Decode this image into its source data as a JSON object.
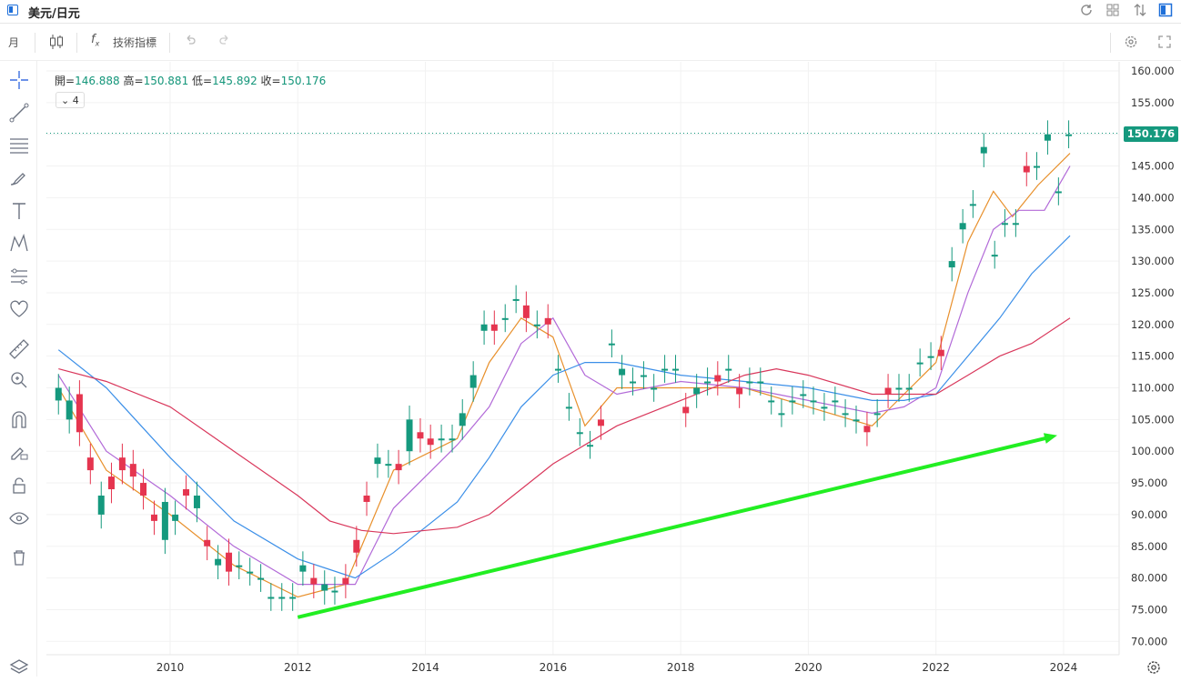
{
  "window": {
    "title": "美元/日元"
  },
  "toolbar": {
    "timeframe": "月",
    "indicators_label": "技術指標"
  },
  "ohlc": {
    "open_label": "開=",
    "open": "146.888",
    "high_label": "高=",
    "high": "150.881",
    "low_label": "低=",
    "low": "145.892",
    "close_label": "收=",
    "close": "150.176"
  },
  "ma_toggle": {
    "count": "4"
  },
  "price_tag": "150.176",
  "icons": [
    "layout-icon",
    "swap-icon",
    "grid-icon",
    "refresh-icon",
    "candle-icon",
    "fx-icon",
    "undo-icon",
    "redo-icon",
    "settings-icon",
    "fullscreen-icon",
    "crosshair-icon",
    "line-icon",
    "hlines-icon",
    "brush-icon",
    "text-icon",
    "pattern-icon",
    "measure-icon",
    "heart-icon",
    "ruler-icon",
    "zoom-icon",
    "magnet-icon",
    "lock-edit-icon",
    "lock-icon",
    "eye-icon",
    "trash-icon",
    "layers-icon",
    "gear-icon"
  ],
  "colors": {
    "up": "#15997e",
    "down": "#e5354f",
    "ma_short": "#e8902c",
    "ma_mid": "#b26ad8",
    "ma_long": "#3b8fe8",
    "ma_xlong": "#d9385c",
    "trend_arrow": "#22ee22"
  },
  "chart_data": {
    "type": "candlestick",
    "x_axis": {
      "ticks": [
        "2010",
        "2012",
        "2014",
        "2016",
        "2018",
        "2020",
        "2022",
        "2024"
      ]
    },
    "y_axis": {
      "ticks": [
        "160.000",
        "155.000",
        "150.000",
        "145.000",
        "140.000",
        "135.000",
        "130.000",
        "125.000",
        "120.000",
        "115.000",
        "110.000",
        "105.000",
        "100.000",
        "95.000",
        "90.000",
        "85.000",
        "80.000",
        "75.000",
        "70.000"
      ],
      "ylim": [
        70,
        160
      ]
    },
    "last_close": 150.176,
    "series": [
      {
        "type": "candles",
        "points": [
          [
            2008.25,
            108,
            110
          ],
          [
            2008.42,
            105,
            108
          ],
          [
            2008.58,
            109,
            103
          ],
          [
            2008.75,
            99,
            97
          ],
          [
            2008.92,
            90,
            93
          ],
          [
            2009.08,
            96,
            94
          ],
          [
            2009.25,
            99,
            97
          ],
          [
            2009.42,
            98,
            96
          ],
          [
            2009.58,
            95,
            93
          ],
          [
            2009.75,
            90,
            89
          ],
          [
            2009.92,
            86,
            92
          ],
          [
            2010.08,
            89,
            90
          ],
          [
            2010.25,
            94,
            93
          ],
          [
            2010.42,
            91,
            93
          ],
          [
            2010.58,
            86,
            85
          ],
          [
            2010.75,
            82,
            83
          ],
          [
            2010.92,
            84,
            81
          ],
          [
            2011.08,
            82,
            82
          ],
          [
            2011.25,
            81,
            81
          ],
          [
            2011.42,
            80,
            80
          ],
          [
            2011.58,
            77,
            77
          ],
          [
            2011.75,
            77,
            77
          ],
          [
            2011.92,
            77,
            77
          ],
          [
            2012.08,
            81,
            82
          ],
          [
            2012.25,
            80,
            79
          ],
          [
            2012.42,
            78,
            79
          ],
          [
            2012.58,
            78,
            78
          ],
          [
            2012.75,
            80,
            79
          ],
          [
            2012.92,
            86,
            84
          ],
          [
            2013.08,
            93,
            92
          ],
          [
            2013.25,
            98,
            99
          ],
          [
            2013.42,
            98,
            98
          ],
          [
            2013.58,
            98,
            97
          ],
          [
            2013.75,
            100,
            105
          ],
          [
            2013.92,
            103,
            102
          ],
          [
            2014.08,
            102,
            101
          ],
          [
            2014.25,
            102,
            102
          ],
          [
            2014.42,
            102,
            102
          ],
          [
            2014.58,
            104,
            106
          ],
          [
            2014.75,
            110,
            112
          ],
          [
            2014.92,
            119,
            120
          ],
          [
            2015.08,
            120,
            119
          ],
          [
            2015.25,
            121,
            121
          ],
          [
            2015.42,
            124,
            124
          ],
          [
            2015.58,
            123,
            121
          ],
          [
            2015.75,
            120,
            120
          ],
          [
            2015.92,
            121,
            120
          ],
          [
            2016.08,
            113,
            113
          ],
          [
            2016.25,
            107,
            107
          ],
          [
            2016.42,
            103,
            103
          ],
          [
            2016.58,
            101,
            101
          ],
          [
            2016.75,
            105,
            104
          ],
          [
            2016.92,
            117,
            117
          ],
          [
            2017.08,
            112,
            113
          ],
          [
            2017.25,
            111,
            111
          ],
          [
            2017.42,
            112,
            112
          ],
          [
            2017.58,
            110,
            110
          ],
          [
            2017.75,
            113,
            113
          ],
          [
            2017.92,
            113,
            113
          ],
          [
            2018.08,
            107,
            106
          ],
          [
            2018.25,
            109,
            110
          ],
          [
            2018.42,
            111,
            111
          ],
          [
            2018.58,
            112,
            111
          ],
          [
            2018.75,
            113,
            113
          ],
          [
            2018.92,
            110,
            109
          ],
          [
            2019.08,
            111,
            111
          ],
          [
            2019.25,
            111,
            111
          ],
          [
            2019.42,
            108,
            108
          ],
          [
            2019.58,
            106,
            106
          ],
          [
            2019.75,
            108,
            108
          ],
          [
            2019.92,
            109,
            109
          ],
          [
            2020.08,
            108,
            108
          ],
          [
            2020.25,
            107,
            107
          ],
          [
            2020.42,
            108,
            108
          ],
          [
            2020.58,
            106,
            106
          ],
          [
            2020.75,
            105,
            105
          ],
          [
            2020.92,
            104,
            103
          ],
          [
            2021.08,
            106,
            106
          ],
          [
            2021.25,
            110,
            109
          ],
          [
            2021.42,
            110,
            110
          ],
          [
            2021.58,
            110,
            110
          ],
          [
            2021.75,
            114,
            114
          ],
          [
            2021.92,
            115,
            115
          ],
          [
            2022.08,
            116,
            115
          ],
          [
            2022.25,
            129,
            130
          ],
          [
            2022.42,
            135,
            136
          ],
          [
            2022.58,
            139,
            139
          ],
          [
            2022.75,
            147,
            148
          ],
          [
            2022.92,
            131,
            131
          ],
          [
            2023.08,
            136,
            136
          ],
          [
            2023.25,
            136,
            136
          ],
          [
            2023.42,
            145,
            144
          ],
          [
            2023.58,
            145,
            145
          ],
          [
            2023.75,
            149,
            150
          ],
          [
            2023.92,
            141,
            141
          ],
          [
            2024.08,
            150,
            150
          ]
        ]
      },
      {
        "name": "",
        "type": "line",
        "points": [
          [
            2008.25,
            110
          ],
          [
            2009,
            97
          ],
          [
            2010,
            90
          ],
          [
            2011,
            82
          ],
          [
            2012,
            77
          ],
          [
            2012.75,
            79
          ],
          [
            2013.5,
            97
          ],
          [
            2014.5,
            102
          ],
          [
            2015,
            114
          ],
          [
            2015.5,
            121
          ],
          [
            2016,
            118
          ],
          [
            2016.5,
            104
          ],
          [
            2017,
            110
          ],
          [
            2018,
            110
          ],
          [
            2019,
            110
          ],
          [
            2020,
            107
          ],
          [
            2021,
            104
          ],
          [
            2021.5,
            109
          ],
          [
            2022,
            114
          ],
          [
            2022.5,
            133
          ],
          [
            2022.9,
            141
          ],
          [
            2023.2,
            137
          ],
          [
            2023.6,
            142
          ],
          [
            2024.1,
            147
          ]
        ]
      },
      {
        "name": "",
        "type": "line",
        "points": [
          [
            2008.25,
            112
          ],
          [
            2009,
            100
          ],
          [
            2010,
            93
          ],
          [
            2011,
            85
          ],
          [
            2012,
            79
          ],
          [
            2012.9,
            79
          ],
          [
            2013.5,
            91
          ],
          [
            2014.5,
            101
          ],
          [
            2015,
            107
          ],
          [
            2015.5,
            117
          ],
          [
            2016,
            121
          ],
          [
            2016.5,
            112
          ],
          [
            2017,
            109
          ],
          [
            2018,
            111
          ],
          [
            2019,
            110
          ],
          [
            2020,
            108
          ],
          [
            2021,
            106
          ],
          [
            2021.5,
            107
          ],
          [
            2022,
            110
          ],
          [
            2022.5,
            125
          ],
          [
            2022.9,
            135
          ],
          [
            2023.3,
            138
          ],
          [
            2023.7,
            138
          ],
          [
            2024.1,
            145
          ]
        ]
      },
      {
        "name": "",
        "type": "line",
        "points": [
          [
            2008.25,
            116
          ],
          [
            2009,
            110
          ],
          [
            2010,
            99
          ],
          [
            2011,
            89
          ],
          [
            2012,
            83
          ],
          [
            2012.9,
            80
          ],
          [
            2013.5,
            84
          ],
          [
            2014.5,
            92
          ],
          [
            2015,
            99
          ],
          [
            2015.5,
            107
          ],
          [
            2016,
            112
          ],
          [
            2016.5,
            114
          ],
          [
            2017,
            114
          ],
          [
            2018,
            112
          ],
          [
            2019,
            111
          ],
          [
            2020,
            110
          ],
          [
            2021,
            108
          ],
          [
            2021.5,
            108
          ],
          [
            2022,
            109
          ],
          [
            2022.5,
            115
          ],
          [
            2023,
            121
          ],
          [
            2023.5,
            128
          ],
          [
            2024.1,
            134
          ]
        ]
      },
      {
        "name": "",
        "type": "line",
        "points": [
          [
            2008.25,
            113
          ],
          [
            2009,
            111
          ],
          [
            2010,
            107
          ],
          [
            2011,
            100
          ],
          [
            2012,
            93
          ],
          [
            2012.5,
            89
          ],
          [
            2013,
            87.5
          ],
          [
            2013.5,
            87
          ],
          [
            2014.5,
            88
          ],
          [
            2015,
            90
          ],
          [
            2015.5,
            94
          ],
          [
            2016,
            98
          ],
          [
            2016.5,
            101
          ],
          [
            2017,
            104
          ],
          [
            2018,
            108
          ],
          [
            2019,
            112
          ],
          [
            2019.5,
            113
          ],
          [
            2020,
            112
          ],
          [
            2021,
            109
          ],
          [
            2021.5,
            109
          ],
          [
            2022,
            109
          ],
          [
            2022.5,
            112
          ],
          [
            2023,
            115
          ],
          [
            2023.5,
            117
          ],
          [
            2024.1,
            121
          ]
        ]
      },
      {
        "name": "",
        "type": "trend-arrow",
        "points": [
          [
            2012.0,
            73.8
          ],
          [
            2023.9,
            102.5
          ]
        ]
      }
    ]
  }
}
